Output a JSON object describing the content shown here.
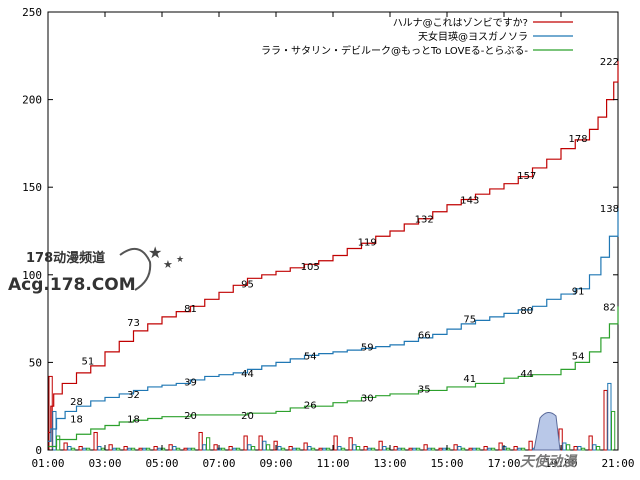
{
  "chart_data": {
    "type": "line",
    "ylim": [
      0,
      250
    ],
    "yticks": [
      0,
      50,
      100,
      150,
      200,
      250
    ],
    "xlim": [
      "01:00",
      "21:00"
    ],
    "xticks": [
      "01:00",
      "03:00",
      "05:00",
      "07:00",
      "09:00",
      "11:00",
      "13:00",
      "15:00",
      "17:00",
      "19:00",
      "21:00"
    ],
    "grid": false,
    "legend_position": "top-right",
    "series": [
      {
        "name": "ハルナ@これはゾンビですか?",
        "color": "#c00000",
        "cumulative": [
          [
            1.0,
            10
          ],
          [
            1.1,
            25
          ],
          [
            1.2,
            32
          ],
          [
            1.5,
            38
          ],
          [
            2.0,
            44
          ],
          [
            2.5,
            48
          ],
          [
            3.0,
            56
          ],
          [
            3.5,
            62
          ],
          [
            4.0,
            68
          ],
          [
            4.5,
            72
          ],
          [
            5.0,
            76
          ],
          [
            5.5,
            79
          ],
          [
            6.0,
            82
          ],
          [
            6.5,
            86
          ],
          [
            7.0,
            90
          ],
          [
            7.5,
            94
          ],
          [
            8.0,
            98
          ],
          [
            8.5,
            100
          ],
          [
            9.0,
            102
          ],
          [
            9.5,
            104
          ],
          [
            10.0,
            106
          ],
          [
            10.5,
            108
          ],
          [
            11.0,
            111
          ],
          [
            11.5,
            115
          ],
          [
            12.0,
            118
          ],
          [
            12.5,
            122
          ],
          [
            13.0,
            125
          ],
          [
            13.5,
            129
          ],
          [
            14.0,
            132
          ],
          [
            14.5,
            136
          ],
          [
            15.0,
            140
          ],
          [
            15.5,
            143
          ],
          [
            16.0,
            146
          ],
          [
            16.5,
            149
          ],
          [
            17.0,
            152
          ],
          [
            17.5,
            156
          ],
          [
            18.0,
            161
          ],
          [
            18.5,
            166
          ],
          [
            19.0,
            172
          ],
          [
            19.5,
            177
          ],
          [
            20.0,
            183
          ],
          [
            20.3,
            190
          ],
          [
            20.6,
            200
          ],
          [
            20.85,
            210
          ],
          [
            21.0,
            222
          ]
        ],
        "labels": [
          [
            2.4,
            51
          ],
          [
            4.0,
            73
          ],
          [
            6.0,
            81
          ],
          [
            8.0,
            95
          ],
          [
            10.2,
            105
          ],
          [
            12.2,
            119
          ],
          [
            14.2,
            132
          ],
          [
            15.8,
            143
          ],
          [
            17.8,
            157
          ],
          [
            19.6,
            178
          ],
          [
            20.7,
            222
          ]
        ]
      },
      {
        "name": "天女目瑛@ヨスガノソラ",
        "color": "#1f77b4",
        "cumulative": [
          [
            1.0,
            5
          ],
          [
            1.1,
            12
          ],
          [
            1.3,
            18
          ],
          [
            1.6,
            22
          ],
          [
            2.0,
            25
          ],
          [
            2.5,
            28
          ],
          [
            3.0,
            30
          ],
          [
            3.5,
            32
          ],
          [
            4.0,
            34
          ],
          [
            4.5,
            36
          ],
          [
            5.0,
            37
          ],
          [
            5.5,
            38
          ],
          [
            6.0,
            40
          ],
          [
            6.5,
            42
          ],
          [
            7.0,
            43
          ],
          [
            7.5,
            44
          ],
          [
            8.0,
            46
          ],
          [
            8.5,
            48
          ],
          [
            9.0,
            50
          ],
          [
            9.5,
            52
          ],
          [
            10.0,
            54
          ],
          [
            10.5,
            55
          ],
          [
            11.0,
            56
          ],
          [
            11.5,
            57
          ],
          [
            12.0,
            58
          ],
          [
            12.5,
            59
          ],
          [
            13.0,
            60
          ],
          [
            13.5,
            62
          ],
          [
            14.0,
            64
          ],
          [
            14.5,
            66
          ],
          [
            15.0,
            69
          ],
          [
            15.5,
            72
          ],
          [
            16.0,
            74
          ],
          [
            16.5,
            76
          ],
          [
            17.0,
            78
          ],
          [
            17.5,
            80
          ],
          [
            18.0,
            82
          ],
          [
            18.5,
            86
          ],
          [
            19.0,
            89
          ],
          [
            19.5,
            92
          ],
          [
            20.0,
            100
          ],
          [
            20.4,
            110
          ],
          [
            20.7,
            122
          ],
          [
            21.0,
            138
          ]
        ],
        "labels": [
          [
            2.0,
            28
          ],
          [
            4.0,
            32
          ],
          [
            6.0,
            39
          ],
          [
            8.0,
            44
          ],
          [
            10.2,
            54
          ],
          [
            12.2,
            59
          ],
          [
            14.2,
            66
          ],
          [
            15.8,
            75
          ],
          [
            17.8,
            80
          ],
          [
            19.6,
            91
          ],
          [
            20.7,
            138
          ]
        ]
      },
      {
        "name": "ララ・サタリン・デビルーク@もっとTo LOVEる-とらぶる-",
        "color": "#2ca02c",
        "cumulative": [
          [
            1.0,
            2
          ],
          [
            1.3,
            6
          ],
          [
            2.0,
            9
          ],
          [
            2.5,
            12
          ],
          [
            3.0,
            14
          ],
          [
            3.5,
            16
          ],
          [
            4.0,
            17
          ],
          [
            4.5,
            18
          ],
          [
            5.0,
            19
          ],
          [
            6.0,
            20
          ],
          [
            7.0,
            20
          ],
          [
            8.0,
            21
          ],
          [
            9.0,
            22
          ],
          [
            9.5,
            24
          ],
          [
            10.0,
            25
          ],
          [
            11.0,
            27
          ],
          [
            11.5,
            28
          ],
          [
            12.0,
            30
          ],
          [
            12.5,
            31
          ],
          [
            13.0,
            32
          ],
          [
            14.0,
            34
          ],
          [
            15.0,
            36
          ],
          [
            16.0,
            38
          ],
          [
            17.0,
            41
          ],
          [
            17.5,
            42
          ],
          [
            18.0,
            43
          ],
          [
            19.0,
            46
          ],
          [
            19.5,
            50
          ],
          [
            20.0,
            56
          ],
          [
            20.4,
            64
          ],
          [
            20.7,
            72
          ],
          [
            21.0,
            82
          ]
        ],
        "labels": [
          [
            2.0,
            18
          ],
          [
            4.0,
            18
          ],
          [
            6.0,
            20
          ],
          [
            8.0,
            20
          ],
          [
            10.2,
            26
          ],
          [
            12.2,
            30
          ],
          [
            14.2,
            35
          ],
          [
            15.8,
            41
          ],
          [
            17.8,
            44
          ],
          [
            19.6,
            54
          ],
          [
            20.7,
            82
          ]
        ]
      }
    ],
    "hourly_bars": {
      "red": [
        42,
        4,
        2,
        10,
        3,
        2,
        1,
        2,
        3,
        1,
        10,
        3,
        2,
        8,
        8,
        5,
        2,
        4,
        1,
        8,
        7,
        2,
        5,
        2,
        1,
        3,
        1,
        3,
        1,
        2,
        4,
        2,
        5,
        8,
        12,
        2,
        8,
        34
      ],
      "blue": [
        22,
        2,
        1,
        2,
        1,
        1,
        1,
        1,
        2,
        1,
        3,
        1,
        1,
        3,
        5,
        2,
        1,
        2,
        1,
        2,
        3,
        1,
        2,
        1,
        1,
        1,
        1,
        2,
        1,
        1,
        2,
        1,
        1,
        2,
        4,
        2,
        3,
        38
      ],
      "green": [
        8,
        1,
        1,
        1,
        1,
        1,
        1,
        1,
        1,
        1,
        7,
        1,
        1,
        2,
        3,
        1,
        1,
        1,
        1,
        1,
        2,
        1,
        1,
        1,
        1,
        1,
        1,
        1,
        1,
        1,
        1,
        1,
        1,
        1,
        3,
        1,
        2,
        22
      ]
    },
    "watermark": {
      "line1": "178动漫频道",
      "line2": "Acg.178.COM",
      "corner": "天使动漫"
    }
  }
}
